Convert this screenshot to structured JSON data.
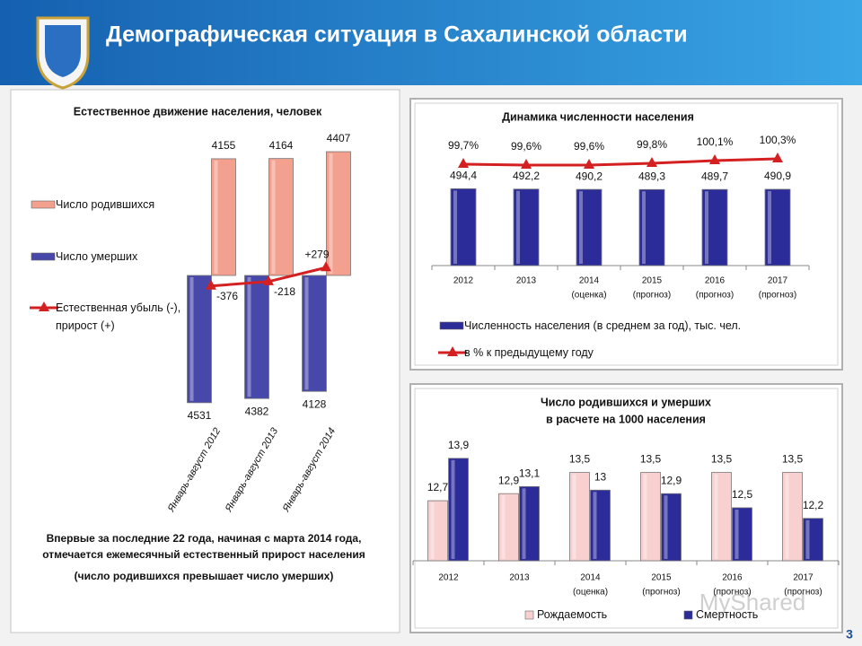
{
  "header": {
    "title": "Демографическая ситуация в Сахалинской области"
  },
  "chart_data": [
    {
      "type": "bar",
      "title": "Естественное движение населения, человек",
      "categories": [
        "Январь-август 2012",
        "Январь-август 2013",
        "Январь-август 2014"
      ],
      "ylim": [
        -4600,
        4600
      ],
      "series": [
        {
          "name": "Число родившихся",
          "color": "#f4a08e",
          "values": [
            4155,
            4164,
            4407
          ]
        },
        {
          "name": "Число умерших",
          "color": "#4848aa",
          "direction": "down",
          "values": [
            4531,
            4382,
            4128
          ]
        },
        {
          "name": "Естественная убыль (-), прирост (+)",
          "type": "line",
          "color": "#d42020",
          "values": [
            -376,
            -218,
            279
          ],
          "value_labels": [
            "-376",
            "-218",
            "+279"
          ]
        }
      ],
      "legend": "left"
    },
    {
      "type": "bar",
      "title": "Динамика численности населения",
      "categories": [
        "2012",
        "2013",
        "2014",
        "2015",
        "2016",
        "2017"
      ],
      "category_notes": [
        null,
        null,
        "(оценка)",
        "(прогноз)",
        "(прогноз)",
        "(прогноз)"
      ],
      "ylim": [
        0,
        560
      ],
      "y2lim": [
        95,
        105
      ],
      "series": [
        {
          "name": "Численность населения (в среднем за год), тыс. чел.",
          "color": "#2b2b9a",
          "values": [
            494.4,
            492.2,
            490.2,
            489.3,
            489.7,
            490.9
          ],
          "value_labels": [
            "494,4",
            "492,2",
            "490,2",
            "489,3",
            "489,7",
            "490,9"
          ]
        },
        {
          "name": "в % к предыдущему году",
          "type": "line",
          "axis": "y2",
          "color": "#d42020",
          "values": [
            99.7,
            99.6,
            99.6,
            99.8,
            100.1,
            100.3
          ],
          "value_labels": [
            "99,7%",
            "99,6%",
            "99,6%",
            "99,8%",
            "100,1%",
            "100,3%"
          ]
        }
      ],
      "legend": "bottom"
    },
    {
      "type": "bar",
      "title": [
        "Число родившихся и умерших",
        "в расчете на 1000 населения"
      ],
      "categories": [
        "2012",
        "2013",
        "2014",
        "2015",
        "2016",
        "2017"
      ],
      "category_notes": [
        null,
        null,
        "(оценка)",
        "(прогноз)",
        "(прогноз)",
        "(прогноз)"
      ],
      "ylim": [
        11,
        14.2
      ],
      "series": [
        {
          "name": "Рождаемость",
          "color": "#f8d0d0",
          "values": [
            12.7,
            12.9,
            13.5,
            13.5,
            13.5,
            13.5
          ],
          "value_labels": [
            "12,7",
            "12,9",
            "13,5",
            "13,5",
            "13,5",
            "13,5"
          ]
        },
        {
          "name": "Смертность",
          "color": "#2b2b9a",
          "values": [
            13.9,
            13.1,
            13,
            12.9,
            12.5,
            12.2
          ],
          "value_labels": [
            "13,9",
            "13,1",
            "13",
            "12,9",
            "12,5",
            "12,2"
          ]
        }
      ],
      "legend": "bottom"
    }
  ],
  "note": [
    "Впервые за последние 22 года, начиная  с  марта 2014 года,",
    "отмечается ежемесячный естественный прирост населения",
    "(число родившихся превышает число умерших)"
  ],
  "page_number": "3",
  "watermark": "MyShared"
}
